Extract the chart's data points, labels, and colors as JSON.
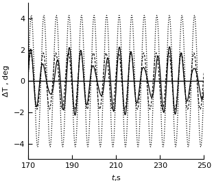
{
  "t_start": 170,
  "t_end": 250,
  "xlim": [
    170,
    250
  ],
  "ylim": [
    -5,
    5
  ],
  "yticks": [
    -4,
    -2,
    0,
    2,
    4
  ],
  "xticks": [
    170,
    190,
    210,
    230,
    250
  ],
  "xlabel": "t,s",
  "ylabel": "ΔT , deg",
  "freq_main": 0.175,
  "amp_dotted": 4.2,
  "amp_dashed": 1.8,
  "amp_solid1": 1.5,
  "amp_solid2": 0.7,
  "freq_beat": 0.045,
  "background_color": "#ffffff",
  "line_color": "#000000",
  "num_points": 3000,
  "figwidth": 3.12,
  "figheight": 2.7,
  "dpi": 100
}
